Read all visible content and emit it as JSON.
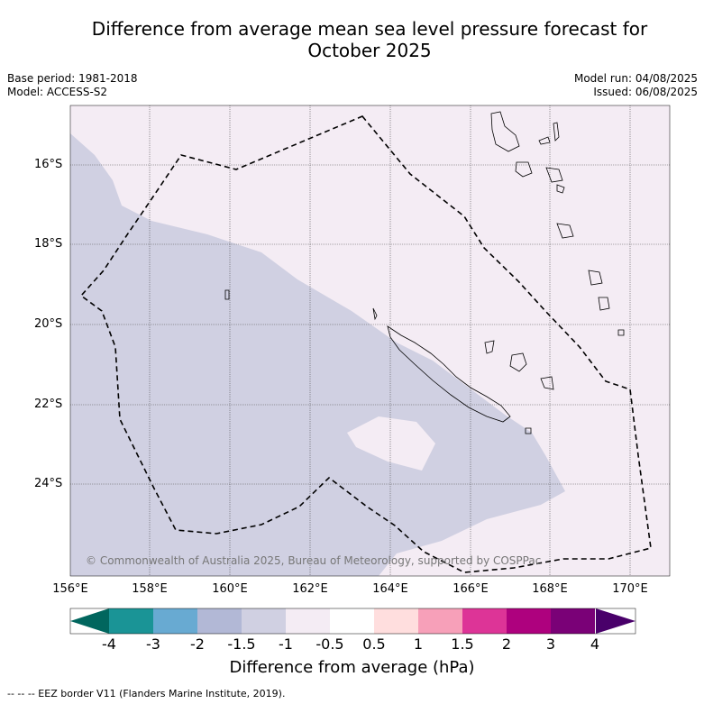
{
  "header": {
    "title_line1": "Difference from average mean sea level pressure forecast for",
    "title_line2": "October 2025",
    "base_period": "Base period: 1981-2018",
    "model": "Model: ACCESS-S2",
    "model_run": "Model run: 04/08/2025",
    "issued": "Issued: 06/08/2025"
  },
  "map": {
    "lat_labels": [
      "16°S",
      "18°S",
      "20°S",
      "22°S",
      "24°S"
    ],
    "lon_labels": [
      "156°E",
      "158°E",
      "160°E",
      "162°E",
      "164°E",
      "166°E",
      "168°E",
      "170°E"
    ],
    "copyright": "© Commonwealth of Australia 2025, Bureau of Meteorology, supported by COSPPac",
    "region_colors": {
      "minus_1_5_to_minus_1": "#d0d0e2",
      "minus_1_to_minus_0_5": "#f4ecf4"
    }
  },
  "colorbar": {
    "ticks": [
      "-4",
      "-3",
      "-2",
      "-1.5",
      "-1",
      "-0.5",
      "0.5",
      "1",
      "1.5",
      "2",
      "3",
      "4"
    ],
    "colors": [
      "#1a9496",
      "#68aad2",
      "#b2b8d6",
      "#d0d0e2",
      "#f4ecf4",
      "#ffffff",
      "#ffdede",
      "#f7a0b9",
      "#dd3497",
      "#ae017e",
      "#7a0177"
    ],
    "under_color": "#01665e",
    "over_color": "#49006a",
    "label": "Difference from average (hPa)"
  },
  "footnote": "--  --  -- EEZ border V11 (Flanders Marine Institute, 2019)."
}
